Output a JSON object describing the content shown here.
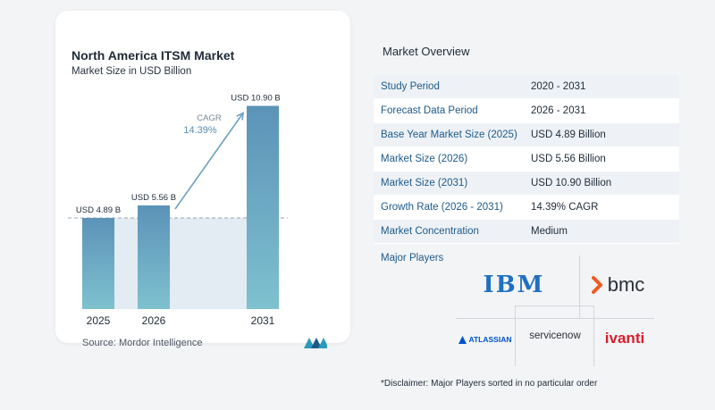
{
  "chart_data": {
    "type": "bar",
    "title": "North America ITSM Market",
    "subtitle": "Market Size in USD Billion",
    "categories": [
      "2025",
      "2026",
      "2031"
    ],
    "values": [
      4.89,
      5.56,
      10.9
    ],
    "value_labels": [
      "USD 4.89 B",
      "USD 5.56 B",
      "USD 10.90 B"
    ],
    "ylim": [
      0,
      11.5
    ],
    "cagr_label": "CAGR",
    "cagr_value": "14.39%",
    "bar_color_top": "#5b93b8",
    "bar_color_bottom": "#7ec1cf",
    "band_color": "#e3ebf3",
    "arrow_color": "#6d9fc1"
  },
  "source": "Source: Mordor Intelligence",
  "overview": {
    "title": "Market Overview",
    "rows": [
      {
        "label": "Study Period",
        "value": "2020 - 2031"
      },
      {
        "label": "Forecast Data Period",
        "value": "2026 - 2031"
      },
      {
        "label": "Base Year Market Size (2025)",
        "value": "USD 4.89 Billion"
      },
      {
        "label": "Market Size (2026)",
        "value": "USD 5.56 Billion"
      },
      {
        "label": "Market Size (2031)",
        "value": "USD 10.90 Billion"
      },
      {
        "label": "Growth Rate (2026 - 2031)",
        "value": "14.39% CAGR"
      },
      {
        "label": "Market Concentration",
        "value": "Medium"
      }
    ]
  },
  "players": {
    "label": "Major Players",
    "ibm": "IBM",
    "bmc": "bmc",
    "atlassian": "ATLASSIAN",
    "servicenow": "servicenow",
    "ivanti": "ivanti"
  },
  "disclaimer": "*Disclaimer: Major Players sorted in no particular order",
  "colors": {
    "accent": "#1d5a8a",
    "ibm": "#1f70c1",
    "bmc": "#f15a22",
    "ivanti": "#d61f2c",
    "atlassian": "#0052cc"
  }
}
